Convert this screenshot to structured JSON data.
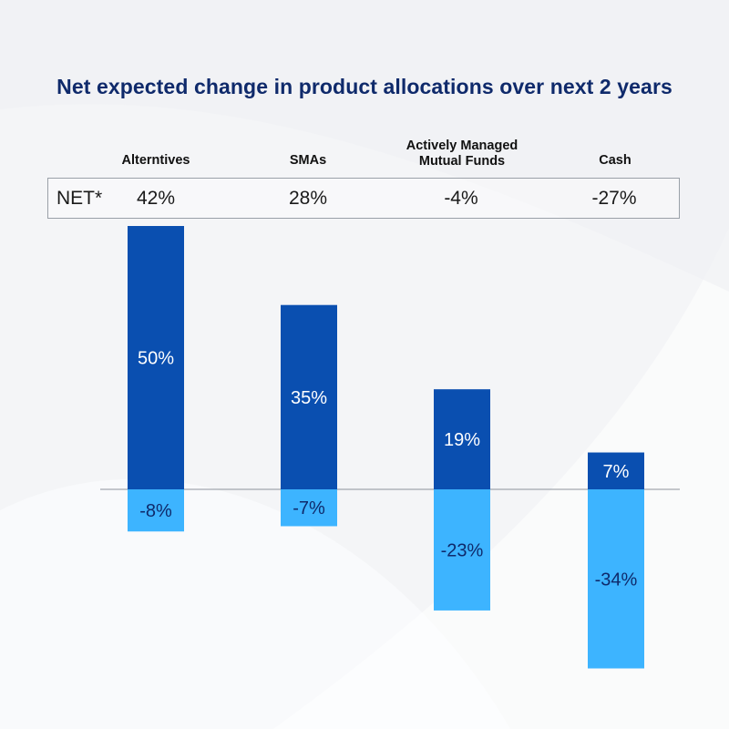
{
  "title": "Net expected change in product allocations over next 2 years",
  "net_label": "NET*",
  "colors": {
    "increase": "#0a4fb0",
    "decrease": "#3db4ff",
    "title": "#0f2a6b",
    "label_on_bar": "#ffffff",
    "label_on_light_bar": "#0f2a6b"
  },
  "chart_data": {
    "type": "bar",
    "stacked": "diverging",
    "categories": [
      {
        "label_lines": [
          "Alterntives"
        ],
        "net": "42%"
      },
      {
        "label_lines": [
          "SMAs"
        ],
        "net": "28%"
      },
      {
        "label_lines": [
          "Actively Managed",
          "Mutual Funds"
        ],
        "net": "-4%"
      },
      {
        "label_lines": [
          "Cash"
        ],
        "net": "-27%"
      }
    ],
    "series": [
      {
        "name": "",
        "values": [
          50,
          35,
          19,
          7
        ],
        "labels": [
          "50%",
          "35%",
          "19%",
          "7%"
        ]
      },
      {
        "name": "",
        "values": [
          -8,
          -7,
          -23,
          -34
        ],
        "labels": [
          "-8%",
          "-7%",
          "-23%",
          "-34%"
        ]
      }
    ],
    "ylim": [
      -34,
      50
    ],
    "grid": false,
    "legend": "none"
  }
}
